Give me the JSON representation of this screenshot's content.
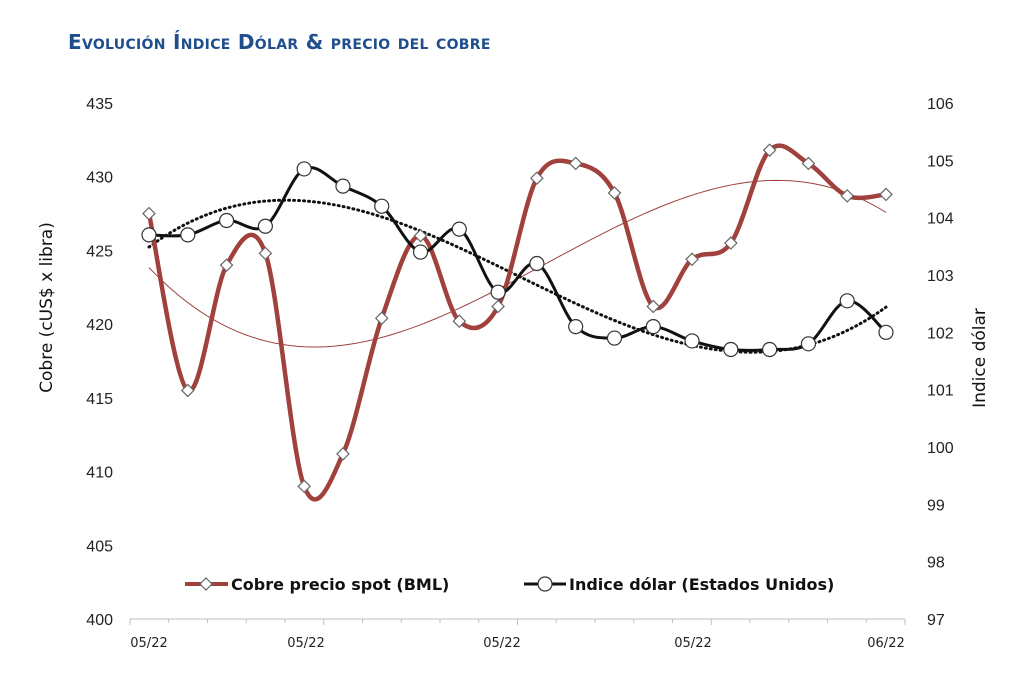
{
  "title": "Evolución Índice Dólar & precio del cobre",
  "chart_data": {
    "type": "line",
    "title": "Evolución Índice Dólar & precio del cobre",
    "x_tick_labels": [
      "05/22",
      "05/22",
      "05/22",
      "05/22",
      "06/22"
    ],
    "y_left": {
      "label": "Cobre (cUS$ x libra)",
      "range": [
        400,
        435
      ],
      "step": 5
    },
    "y_right": {
      "label": "Indice dólar",
      "range": [
        97,
        106
      ],
      "step": 1
    },
    "legend": {
      "position": "bottom-center",
      "items": [
        {
          "label": "Cobre precio spot (BML)",
          "color": "#a0413d",
          "marker": "diamond"
        },
        {
          "label": "Indice dólar (Estados Unidos)",
          "color": "#111111",
          "marker": "circle"
        }
      ]
    },
    "series": [
      {
        "name": "Cobre precio spot (BML)",
        "axis": "left",
        "color": "#a0413d",
        "marker": "diamond",
        "x": [
          1,
          2,
          3,
          4,
          5,
          6,
          7,
          8,
          9,
          10,
          11,
          12,
          13,
          14,
          15,
          16,
          17,
          18,
          19,
          20
        ],
        "values": [
          427.5,
          415.5,
          424.0,
          424.8,
          409.0,
          411.2,
          420.4,
          426.0,
          420.2,
          421.2,
          429.9,
          430.9,
          428.9,
          421.2,
          424.4,
          425.5,
          431.8,
          430.9,
          428.7,
          428.8
        ]
      },
      {
        "name": "Indice dólar (Estados Unidos)",
        "axis": "right",
        "color": "#111111",
        "marker": "circle",
        "x": [
          1,
          2,
          3,
          4,
          5,
          6,
          7,
          8,
          9,
          10,
          11,
          12,
          13,
          14,
          15,
          16,
          17,
          18,
          19,
          20
        ],
        "values": [
          103.7,
          103.7,
          103.95,
          103.85,
          104.85,
          104.55,
          104.2,
          103.4,
          103.8,
          102.7,
          103.2,
          102.1,
          101.9,
          102.1,
          101.85,
          101.7,
          101.7,
          101.8,
          102.55,
          102.0
        ]
      }
    ],
    "trendlines": [
      {
        "of": "Cobre precio spot (BML)",
        "style": "thin",
        "color": "#a0413d"
      },
      {
        "of": "Indice dólar (Estados Unidos)",
        "style": "dotted",
        "color": "#111111"
      }
    ]
  }
}
